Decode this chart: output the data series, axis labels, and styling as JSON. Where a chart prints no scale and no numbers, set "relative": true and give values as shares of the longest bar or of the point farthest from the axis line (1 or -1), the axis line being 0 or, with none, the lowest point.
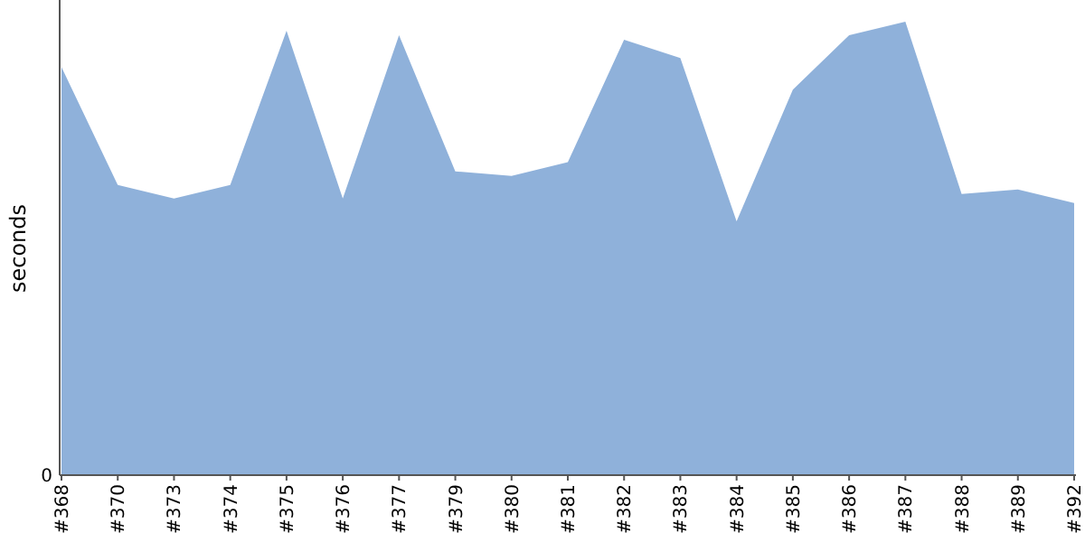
{
  "chart_data": {
    "type": "area",
    "ylabel": "seconds",
    "relative": true,
    "annotations": [
      "0"
    ],
    "categories": [
      "#368",
      "#370",
      "#373",
      "#374",
      "#375",
      "#376",
      "#377",
      "#379",
      "#380",
      "#381",
      "#382",
      "#383",
      "#384",
      "#385",
      "#386",
      "#387",
      "#388",
      "#389",
      "#392"
    ],
    "series": [
      {
        "color": "#8fb1da",
        "values": [
          0.9,
          0.64,
          0.61,
          0.64,
          0.98,
          0.61,
          0.97,
          0.67,
          0.66,
          0.69,
          0.96,
          0.92,
          0.56,
          0.85,
          0.97,
          1,
          0.62,
          0.63,
          0.6
        ]
      }
    ]
  }
}
